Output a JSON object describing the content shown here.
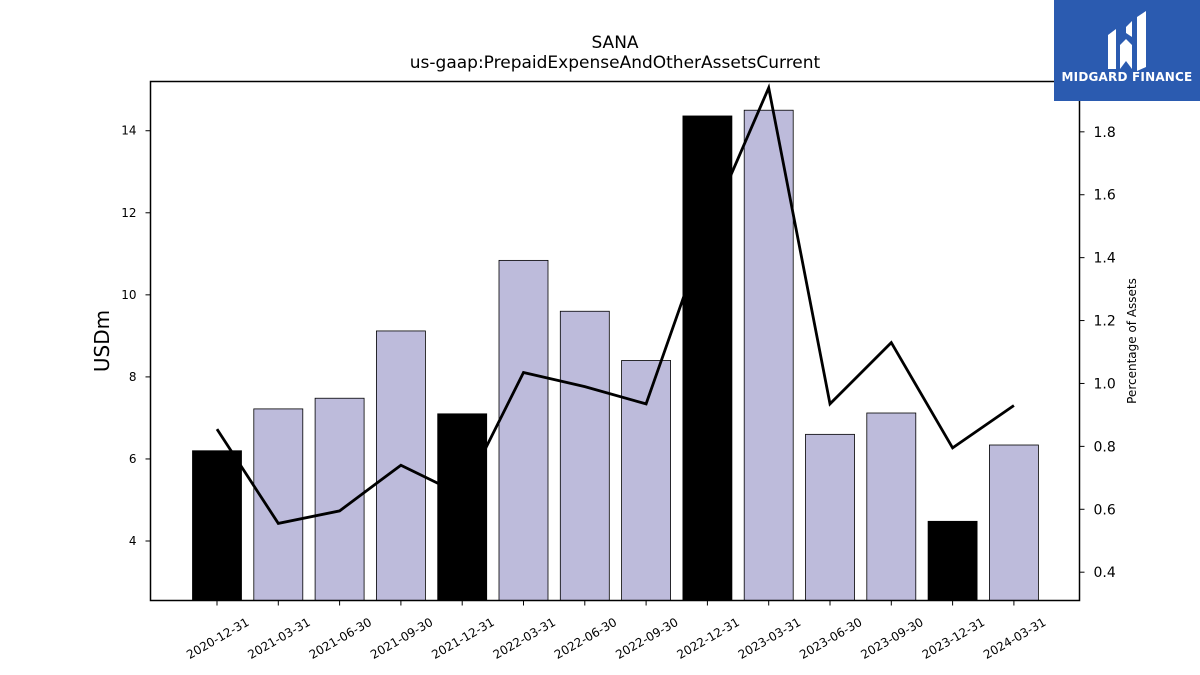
{
  "chart_data": {
    "type": "bar",
    "title": "SANA",
    "subtitle": "us-gaap:PrepaidExpenseAndOtherAssetsCurrent",
    "ylabel": "USDm",
    "y2label": "Percentage of Assets",
    "categories": [
      "2020-12-31",
      "2021-03-31",
      "2021-06-30",
      "2021-09-30",
      "2021-12-31",
      "2022-03-31",
      "2022-06-30",
      "2022-09-30",
      "2022-12-31",
      "2023-03-31",
      "2023-06-30",
      "2023-09-30",
      "2023-12-31",
      "2024-03-31"
    ],
    "values": [
      6.2,
      7.22,
      7.48,
      9.12,
      7.1,
      10.84,
      9.6,
      8.4,
      14.36,
      14.5,
      6.6,
      7.12,
      4.48,
      6.34
    ],
    "annual": [
      true,
      false,
      false,
      false,
      true,
      false,
      false,
      false,
      true,
      false,
      false,
      false,
      true,
      false
    ],
    "line_values": [
      0.855,
      0.555,
      0.595,
      0.74,
      0.645,
      1.035,
      0.99,
      0.935,
      1.49,
      1.94,
      0.935,
      1.13,
      0.795,
      0.93
    ],
    "ylim": [
      2.55,
      15.2
    ],
    "y2lim": [
      0.31,
      1.96
    ],
    "yticks": [
      4,
      6,
      8,
      10,
      12,
      14
    ],
    "y2ticks": [
      0.4,
      0.6,
      0.8,
      1.0,
      1.2,
      1.4,
      1.6,
      1.8
    ],
    "colors": {
      "annual_bar": "#000000",
      "quarter_bar": "#bdbbdb",
      "line": "#000000"
    }
  },
  "logo": {
    "text": "MIDGARD FINANCE"
  }
}
